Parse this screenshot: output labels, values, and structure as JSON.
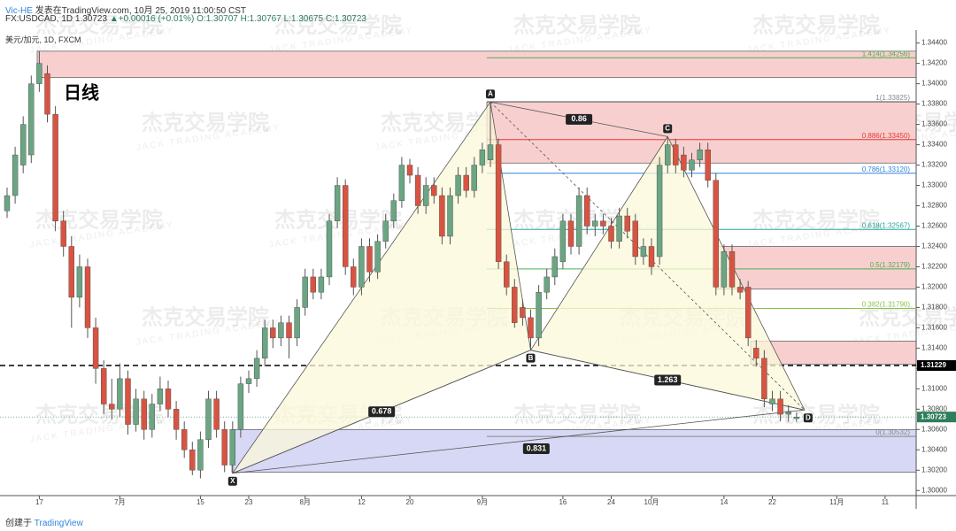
{
  "header": {
    "author": "Vic-HE",
    "published": "发表在TradingView.com, 10月 25, 2019 11:00:50 CST",
    "symbol": "FX:USDCAD, 1D",
    "last": "1.30723",
    "change": "▲+0.00016 (+0.01%)",
    "ohlc": "O:1.30707 H:1.30767 L:1.30675 C:1.30723",
    "source": "美元/加元, 1D, FXCM"
  },
  "footer": {
    "created": "创建于",
    "brand": "TradingView"
  },
  "watermark": {
    "name": "杰克交易学院",
    "sub": "JACK TRADING ACADEMY"
  },
  "chart_data": {
    "type": "candlestick",
    "title": "日线",
    "up_color": "#6ba583",
    "down_color": "#d75442",
    "categories": [
      null,
      null,
      null,
      null,
      "17",
      null,
      null,
      null,
      null,
      null,
      null,
      null,
      null,
      null,
      "7月",
      null,
      null,
      null,
      null,
      null,
      null,
      null,
      null,
      null,
      "15",
      null,
      null,
      null,
      null,
      null,
      "23",
      null,
      null,
      null,
      null,
      null,
      null,
      "8月",
      null,
      null,
      null,
      null,
      null,
      null,
      "12",
      null,
      null,
      null,
      null,
      null,
      "20",
      null,
      null,
      null,
      null,
      null,
      null,
      null,
      null,
      "9月",
      null,
      null,
      null,
      null,
      null,
      null,
      null,
      null,
      null,
      "16",
      null,
      null,
      null,
      null,
      null,
      "24",
      null,
      null,
      null,
      null,
      "10月",
      null,
      null,
      null,
      null,
      null,
      null,
      null,
      null,
      "14",
      null,
      null,
      null,
      null,
      null,
      "22",
      null,
      null,
      null,
      null,
      null,
      null,
      null,
      "11月",
      null,
      null,
      null,
      null,
      null,
      "11"
    ],
    "open": [
      1.3275,
      1.329,
      1.332,
      1.333,
      1.34,
      1.341,
      1.337,
      1.3265,
      1.324,
      1.319,
      1.322,
      1.316,
      1.312,
      1.3085,
      1.308,
      1.311,
      1.3065,
      1.309,
      1.306,
      1.3085,
      1.31,
      1.308,
      1.306,
      1.304,
      1.302,
      1.305,
      1.309,
      1.306,
      1.3025,
      1.306,
      1.3105,
      1.311,
      1.313,
      1.316,
      1.315,
      1.3165,
      1.315,
      1.318,
      1.321,
      1.3195,
      1.321,
      1.3265,
      1.33,
      1.322,
      1.32,
      1.324,
      1.3215,
      1.3245,
      1.3265,
      1.3285,
      1.332,
      1.331,
      1.328,
      1.33,
      1.329,
      1.325,
      1.329,
      1.331,
      1.3295,
      1.332,
      1.3325,
      1.334,
      1.3225,
      1.32,
      1.318,
      1.317,
      1.315,
      1.3195,
      1.321,
      1.3225,
      1.3265,
      1.324,
      1.329,
      1.326,
      1.3265,
      1.326,
      1.3245,
      1.327,
      1.3265,
      1.323,
      1.324,
      1.323,
      1.332,
      1.334,
      1.333,
      1.3315,
      1.3325,
      1.3335,
      1.3305,
      1.32,
      1.3235,
      1.32,
      1.32,
      1.314,
      1.313,
      1.3085,
      1.309,
      1.3075,
      1.30707,
      null,
      null,
      null,
      null,
      null,
      null,
      null,
      null,
      null,
      null,
      null
    ],
    "high": [
      1.3298,
      1.3338,
      1.3368,
      1.3408,
      1.3432,
      1.3418,
      1.3378,
      1.3275,
      1.325,
      1.3232,
      1.3228,
      1.317,
      1.3128,
      1.311,
      1.3125,
      1.3118,
      1.31,
      1.3098,
      1.3095,
      1.3112,
      1.3108,
      1.3088,
      1.3068,
      1.3048,
      1.3058,
      1.3098,
      1.3098,
      1.3068,
      1.3068,
      1.3112,
      1.3118,
      1.3138,
      1.3168,
      1.3168,
      1.3172,
      1.3172,
      1.3188,
      1.3218,
      1.3218,
      1.3218,
      1.3272,
      1.3308,
      1.3306,
      1.3228,
      1.3248,
      1.3248,
      1.3252,
      1.3272,
      1.3292,
      1.3328,
      1.3326,
      1.3318,
      1.3308,
      1.3308,
      1.3298,
      1.3298,
      1.3318,
      1.3318,
      1.3328,
      1.3342,
      1.3382,
      1.3346,
      1.3232,
      1.3208,
      1.3188,
      1.3178,
      1.3202,
      1.3218,
      1.3238,
      1.3272,
      1.3272,
      1.3298,
      1.3298,
      1.3272,
      1.3272,
      1.3268,
      1.3278,
      1.3278,
      1.3272,
      1.3248,
      1.3248,
      1.3328,
      1.3348,
      1.3346,
      1.3338,
      1.3332,
      1.3342,
      1.3342,
      1.3312,
      1.3242,
      1.3242,
      1.3208,
      1.3206,
      1.3148,
      1.3138,
      1.3098,
      1.3098,
      1.3084,
      1.30767,
      null,
      null,
      null,
      null,
      null,
      null,
      null,
      null,
      null,
      null,
      null
    ],
    "low": [
      1.3268,
      1.3282,
      1.3312,
      1.3322,
      1.3392,
      1.3362,
      1.3255,
      1.323,
      1.316,
      1.318,
      1.315,
      1.3105,
      1.3075,
      1.307,
      1.3072,
      1.3055,
      1.3058,
      1.305,
      1.3052,
      1.3078,
      1.3072,
      1.305,
      1.3032,
      1.3015,
      1.3012,
      1.3042,
      1.3052,
      1.3018,
      1.3017,
      1.3052,
      1.3096,
      1.3102,
      1.3122,
      1.314,
      1.3142,
      1.313,
      1.3142,
      1.3172,
      1.3188,
      1.3188,
      1.3202,
      1.3258,
      1.3212,
      1.3192,
      1.3192,
      1.3205,
      1.3208,
      1.3238,
      1.3258,
      1.3278,
      1.3302,
      1.3272,
      1.3272,
      1.3282,
      1.3242,
      1.3242,
      1.3282,
      1.3288,
      1.3288,
      1.3312,
      1.3318,
      1.3218,
      1.3192,
      1.316,
      1.3162,
      1.3138,
      1.3142,
      1.3188,
      1.3202,
      1.3218,
      1.3232,
      1.3232,
      1.3252,
      1.325,
      1.3252,
      1.3238,
      1.3238,
      1.3248,
      1.3222,
      1.3222,
      1.3212,
      1.3222,
      1.3312,
      1.3312,
      1.3308,
      1.3308,
      1.3318,
      1.3298,
      1.3192,
      1.3192,
      1.3192,
      1.3188,
      1.3142,
      1.3122,
      1.3082,
      1.3078,
      1.3068,
      1.30675,
      1.30675,
      null,
      null,
      null,
      null,
      null,
      null,
      null,
      null,
      null,
      null,
      null
    ],
    "close": [
      1.329,
      1.333,
      1.336,
      1.34,
      1.342,
      1.337,
      1.3265,
      1.324,
      1.319,
      1.322,
      1.316,
      1.312,
      1.3085,
      1.308,
      1.311,
      1.3065,
      1.309,
      1.306,
      1.3085,
      1.31,
      1.308,
      1.306,
      1.304,
      1.302,
      1.305,
      1.309,
      1.306,
      1.3025,
      1.306,
      1.3105,
      1.311,
      1.313,
      1.316,
      1.315,
      1.3165,
      1.315,
      1.318,
      1.321,
      1.3195,
      1.321,
      1.3265,
      1.33,
      1.322,
      1.32,
      1.324,
      1.3215,
      1.3245,
      1.3265,
      1.3285,
      1.332,
      1.331,
      1.328,
      1.33,
      1.329,
      1.325,
      1.329,
      1.331,
      1.3295,
      1.332,
      1.3335,
      1.334,
      1.3225,
      1.32,
      1.3165,
      1.317,
      1.315,
      1.3195,
      1.321,
      1.323,
      1.3265,
      1.324,
      1.329,
      1.326,
      1.3265,
      1.326,
      1.3245,
      1.327,
      1.3255,
      1.323,
      1.324,
      1.322,
      1.332,
      1.334,
      1.332,
      1.3315,
      1.3325,
      1.3335,
      1.3305,
      1.32,
      1.3235,
      1.32,
      1.3195,
      1.315,
      1.313,
      1.309,
      1.309,
      1.3075,
      1.3077,
      1.30723,
      null,
      null,
      null,
      null,
      null,
      null,
      null,
      null,
      null,
      null,
      null
    ],
    "ylim": [
      1.2995,
      1.3451
    ],
    "yticks": [
      {
        "value": 1.3,
        "label": "1.30000"
      },
      {
        "value": 1.302,
        "label": "1.30200"
      },
      {
        "value": 1.304,
        "label": "1.30400"
      },
      {
        "value": 1.306,
        "label": "1.30600"
      },
      {
        "value": 1.308,
        "label": "1.30800"
      },
      {
        "value": 1.31,
        "label": "1.31000"
      },
      {
        "value": 1.312,
        "label": "1.31200"
      },
      {
        "value": 1.314,
        "label": "1.31400"
      },
      {
        "value": 1.316,
        "label": "1.31600"
      },
      {
        "value": 1.318,
        "label": "1.31800"
      },
      {
        "value": 1.32,
        "label": "1.32000"
      },
      {
        "value": 1.322,
        "label": "1.32200"
      },
      {
        "value": 1.324,
        "label": "1.32400"
      },
      {
        "value": 1.326,
        "label": "1.32600"
      },
      {
        "value": 1.328,
        "label": "1.32800"
      },
      {
        "value": 1.33,
        "label": "1.33000"
      },
      {
        "value": 1.332,
        "label": "1.33200"
      },
      {
        "value": 1.334,
        "label": "1.33400"
      },
      {
        "value": 1.336,
        "label": "1.33600"
      },
      {
        "value": 1.338,
        "label": "1.33800"
      },
      {
        "value": 1.34,
        "label": "1.34000"
      },
      {
        "value": 1.342,
        "label": "1.34200"
      },
      {
        "value": 1.344,
        "label": "1.34400"
      }
    ],
    "zones": [
      {
        "top": 1.3432,
        "bottom": 1.3406,
        "color": "#f8cfcf"
      },
      {
        "top": 1.3382,
        "bottom": 1.3322,
        "color": "#f8cfcf"
      },
      {
        "top": 1.324,
        "bottom": 1.3198,
        "color": "#f8cfcf"
      },
      {
        "top": 1.3147,
        "bottom": 1.3124,
        "color": "#f8cfcf"
      },
      {
        "top": 1.306,
        "bottom": 1.3018,
        "color": "#d6d8f5"
      }
    ],
    "fib": [
      {
        "value": 1.34256,
        "label": "1.414(1.34256)",
        "color": "#4caf50"
      },
      {
        "value": 1.33825,
        "label": "1(1.33825)",
        "color": "#888888"
      },
      {
        "value": 1.3345,
        "label": "0.886(1.33450)",
        "color": "#e53935"
      },
      {
        "value": 1.3312,
        "label": "0.786(1.33120)",
        "color": "#2e86de"
      },
      {
        "value": 1.32567,
        "label": "0.618(1.32567)",
        "color": "#26a69a"
      },
      {
        "value": 1.32179,
        "label": "0.5(1.32179)",
        "color": "#4caf50"
      },
      {
        "value": 1.3179,
        "label": "0.382(1.31790)",
        "color": "#8bc34a"
      },
      {
        "value": 1.30532,
        "label": "0(1.30532)",
        "color": "#888888"
      }
    ],
    "points": [
      {
        "label": "X",
        "value": 1.3017
      },
      {
        "label": "A",
        "value": 1.3382
      },
      {
        "label": "B",
        "value": 1.3138
      },
      {
        "label": "C",
        "value": 1.3348
      },
      {
        "label": "D",
        "value": 1.30792
      }
    ],
    "ratios": [
      "0.86",
      "1.263",
      "0.678",
      "0.831"
    ],
    "price_lines": [
      {
        "value": 1.31229,
        "color": "#000000"
      },
      {
        "value": 1.30723,
        "color": "#2e7d5b"
      }
    ]
  }
}
